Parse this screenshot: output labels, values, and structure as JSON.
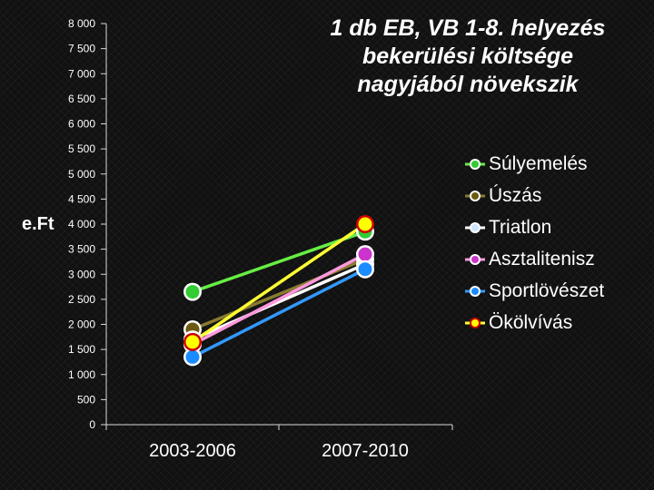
{
  "title_lines": [
    "1 db EB, VB 1-8. helyezés",
    "bekerülési költsége",
    "nagyjából növekszik"
  ],
  "chart_data": {
    "type": "line",
    "title": "1 db EB, VB 1-8. helyezés bekerülési költsége nagyjából növekszik",
    "ylabel": "e.Ft",
    "xlabel": "",
    "categories": [
      "2003-2006",
      "2007-2010"
    ],
    "ylim": [
      0,
      8000
    ],
    "yticks": [
      0,
      500,
      1000,
      1500,
      2000,
      2500,
      3000,
      3500,
      4000,
      4500,
      5000,
      5500,
      6000,
      6500,
      7000,
      7500,
      8000
    ],
    "ytick_labels": [
      "0",
      "500",
      "1 000",
      "1 500",
      "2 000",
      "2 500",
      "3 000",
      "3 500",
      "4 000",
      "4 500",
      "5 000",
      "5 500",
      "6 000",
      "6 500",
      "7 000",
      "7 500",
      "8 000"
    ],
    "legend_position": "right",
    "series": [
      {
        "name": "Súlyemelés",
        "values": [
          2650,
          3850
        ],
        "color": "#33cc33",
        "line_color": "#66ee44"
      },
      {
        "name": "Úszás",
        "values": [
          1900,
          3300
        ],
        "color": "#6b5a10",
        "line_color": "#8a7a30"
      },
      {
        "name": "Triatlon",
        "values": [
          1700,
          3200
        ],
        "color": "#cce6ff",
        "line_color": "#ffffff"
      },
      {
        "name": "Asztalitenisz",
        "values": [
          1600,
          3400
        ],
        "color": "#cc33cc",
        "line_color": "#ff99dd"
      },
      {
        "name": "Sportlövészet",
        "values": [
          1350,
          3100
        ],
        "color": "#1a8cff",
        "line_color": "#3399ff"
      },
      {
        "name": "Ökölvívás",
        "values": [
          1650,
          4000
        ],
        "color": "#ffff00",
        "line_color": "#ffff33",
        "ring_color": "#cc0000"
      }
    ]
  }
}
